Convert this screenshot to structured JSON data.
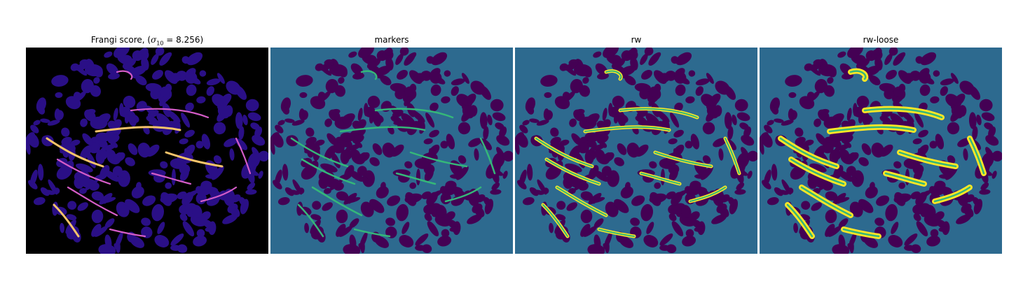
{
  "panels": [
    {
      "id": "frangi",
      "title_prefix": "Frangi score, (",
      "sigma_symbol": "σ",
      "sigma_sub": "10",
      "title_suffix": " = 8.256)"
    },
    {
      "id": "markers",
      "title": "markers"
    },
    {
      "id": "rw",
      "title": "rw"
    },
    {
      "id": "rw-loose",
      "title": "rw-loose"
    }
  ],
  "colors": {
    "figure_bg": "#ffffff",
    "frangi_bg": "#000000",
    "frangi_blob": "#2a0f86",
    "frangi_high": "#d45cc7",
    "frangi_peak": "#f6c36a",
    "seg_bg": "#2d6a8f",
    "seg_blob": "#440154",
    "marker": "#35b779",
    "rw_fill": "#fde725"
  }
}
